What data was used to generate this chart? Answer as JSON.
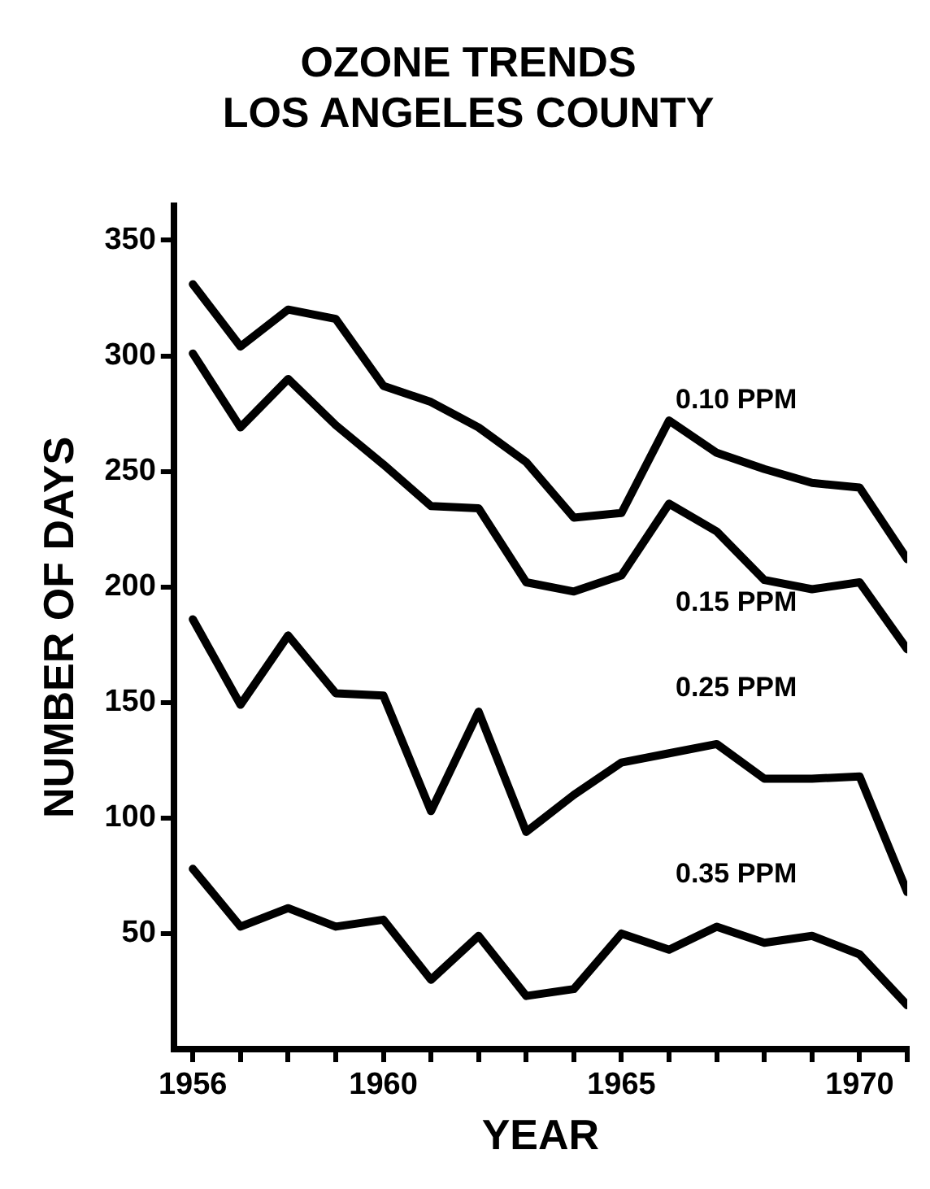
{
  "chart_data": {
    "type": "line",
    "title": "OZONE TRENDS\nLOS ANGELES COUNTY",
    "xlabel": "YEAR",
    "ylabel": "NUMBER OF DAYS",
    "x": [
      1956,
      1957,
      1958,
      1959,
      1960,
      1961,
      1962,
      1963,
      1964,
      1965,
      1966,
      1967,
      1968,
      1969,
      1970,
      1971
    ],
    "series": [
      {
        "name": "0.10 PPM",
        "color": "#000000",
        "values": [
          331,
          304,
          320,
          316,
          287,
          280,
          269,
          254,
          230,
          232,
          272,
          258,
          251,
          245,
          243,
          212
        ]
      },
      {
        "name": "0.15 PPM",
        "color": "#000000",
        "values": [
          301,
          269,
          290,
          270,
          253,
          235,
          234,
          202,
          198,
          205,
          236,
          224,
          203,
          199,
          202,
          173
        ]
      },
      {
        "name": "0.25 PPM",
        "color": "#000000",
        "values": [
          186,
          149,
          179,
          154,
          153,
          103,
          146,
          94,
          110,
          124,
          128,
          132,
          117,
          117,
          118,
          68
        ]
      },
      {
        "name": "0.35 PPM",
        "color": "#000000",
        "values": [
          78,
          53,
          61,
          53,
          56,
          30,
          49,
          23,
          26,
          50,
          43,
          53,
          46,
          49,
          41,
          19
        ]
      }
    ],
    "xlim": [
      1955.6,
      1971
    ],
    "xticks": [
      1956,
      {
        "value": 1957,
        "label": null
      },
      {
        "value": 1958,
        "label": null
      },
      {
        "value": 1959,
        "label": null
      },
      1960,
      {
        "value": 1961,
        "label": null
      },
      {
        "value": 1962,
        "label": null
      },
      {
        "value": 1963,
        "label": null
      },
      {
        "value": 1964,
        "label": null
      },
      1965,
      {
        "value": 1966,
        "label": null
      },
      {
        "value": 1967,
        "label": null
      },
      {
        "value": 1968,
        "label": null
      },
      {
        "value": 1969,
        "label": null
      },
      1970,
      {
        "value": 1971,
        "label": null
      }
    ],
    "ylim": [
      0,
      365
    ],
    "yticks": [
      50,
      100,
      150,
      200,
      250,
      300,
      350
    ],
    "grid": false,
    "legend": false,
    "marker": "none",
    "line_style": "solid"
  }
}
